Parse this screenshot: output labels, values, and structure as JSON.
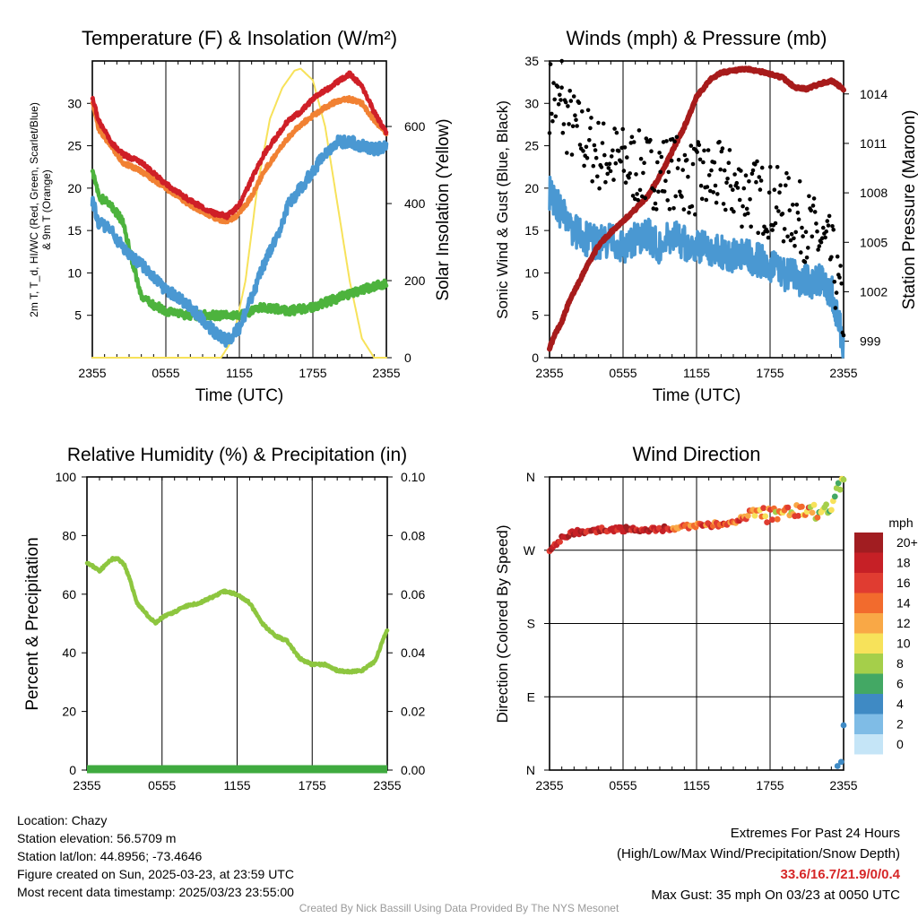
{
  "colors": {
    "temp": "#cf1f27",
    "wetbulb": "#4a98d2",
    "dew": "#4db33d",
    "temp9m": "#f18133",
    "solar": "#f7e25a",
    "sonic": "#4a98d2",
    "gust": "#000000",
    "pressure": "#a71b1b",
    "rh": "#8dc63f",
    "precip": "#3faa3f",
    "gridline": "#000000"
  },
  "x_ticks": [
    "2355",
    "0555",
    "1155",
    "1755",
    "2355"
  ],
  "chart_data": [
    {
      "type": "line",
      "title": "Temperature (F) & Insolation (W/m²)",
      "xlabel": "Time (UTC)",
      "ylabel": "2m T, Td, HI/WC (Red, Green, Scarlet/Blue) & 9m T (Orange)",
      "ylabel_lines": [
        "2m T, T_d, HI/WC (Red, Green, Scarlet/Blue)",
        "& 9m T (Orange)"
      ],
      "y2label": "Solar Insolation (Yellow)",
      "x_ticks": [
        "2355",
        "0555",
        "1155",
        "1755",
        "2355"
      ],
      "ylim": [
        0,
        35
      ],
      "y_ticks": [
        5,
        10,
        15,
        20,
        25,
        30
      ],
      "y2lim": [
        0,
        770
      ],
      "y2_ticks": [
        0,
        200,
        400,
        600
      ],
      "grid": true,
      "series": [
        {
          "key": "temp",
          "axis": "left",
          "points": [
            [
              0,
              30.8
            ],
            [
              0.5,
              28
            ],
            [
              1.5,
              25.5
            ],
            [
              2.5,
              24
            ],
            [
              4,
              23
            ],
            [
              6,
              20.5
            ],
            [
              8,
              18.5
            ],
            [
              10,
              17
            ],
            [
              11,
              16.7
            ],
            [
              12,
              18
            ],
            [
              13,
              21
            ],
            [
              14,
              24
            ],
            [
              15,
              26
            ],
            [
              16,
              28
            ],
            [
              17,
              29
            ],
            [
              18,
              30.5
            ],
            [
              19,
              31.5
            ],
            [
              20,
              32.5
            ],
            [
              21,
              33.5
            ],
            [
              22,
              32
            ],
            [
              23,
              29
            ],
            [
              24,
              26.5
            ]
          ]
        },
        {
          "key": "temp9m",
          "axis": "left",
          "points": [
            [
              0,
              30.3
            ],
            [
              0.5,
              27
            ],
            [
              1.5,
              25
            ],
            [
              2.5,
              23
            ],
            [
              4,
              22
            ],
            [
              6,
              20
            ],
            [
              8,
              18
            ],
            [
              10,
              16.5
            ],
            [
              11,
              16
            ],
            [
              12,
              17
            ],
            [
              13,
              19
            ],
            [
              14,
              22
            ],
            [
              15,
              24
            ],
            [
              16,
              26
            ],
            [
              17,
              27.5
            ],
            [
              18,
              28.5
            ],
            [
              19,
              29.5
            ],
            [
              20,
              30.3
            ],
            [
              21,
              30.5
            ],
            [
              22,
              30
            ],
            [
              23,
              28
            ],
            [
              24,
              26.5
            ]
          ]
        },
        {
          "key": "wetbulb",
          "axis": "left",
          "points": [
            [
              0,
              18.7
            ],
            [
              0.5,
              16
            ],
            [
              1.5,
              15
            ],
            [
              3,
              12
            ],
            [
              4,
              11
            ],
            [
              6,
              8
            ],
            [
              8,
              6
            ],
            [
              10,
              3
            ],
            [
              11,
              2
            ],
            [
              12,
              3.5
            ],
            [
              13,
              7
            ],
            [
              14,
              11
            ],
            [
              15,
              14
            ],
            [
              16,
              18
            ],
            [
              17,
              20
            ],
            [
              18,
              22
            ],
            [
              19,
              24
            ],
            [
              20,
              25.5
            ],
            [
              21,
              25.5
            ],
            [
              22,
              25
            ],
            [
              23,
              24.5
            ],
            [
              24,
              25
            ]
          ]
        },
        {
          "key": "dew",
          "axis": "left",
          "points": [
            [
              0,
              22.5
            ],
            [
              0.5,
              19
            ],
            [
              1.5,
              18
            ],
            [
              2.5,
              16
            ],
            [
              3.5,
              10
            ],
            [
              4,
              7
            ],
            [
              6,
              5.5
            ],
            [
              8,
              5
            ],
            [
              10,
              5
            ],
            [
              12,
              5
            ],
            [
              14,
              6
            ],
            [
              16,
              5.5
            ],
            [
              18,
              6
            ],
            [
              20,
              7
            ],
            [
              22,
              8
            ],
            [
              24,
              8.8
            ]
          ]
        },
        {
          "key": "solar",
          "axis": "right",
          "points": [
            [
              0,
              0
            ],
            [
              10.5,
              0
            ],
            [
              11.5,
              50
            ],
            [
              12.5,
              200
            ],
            [
              13.5,
              450
            ],
            [
              14.5,
              620
            ],
            [
              15.5,
              700
            ],
            [
              16.5,
              745
            ],
            [
              17,
              750
            ],
            [
              18,
              720
            ],
            [
              19,
              600
            ],
            [
              20,
              400
            ],
            [
              21,
              200
            ],
            [
              22,
              50
            ],
            [
              23,
              0
            ],
            [
              24,
              0
            ]
          ]
        }
      ]
    },
    {
      "type": "scatter",
      "title": "Winds (mph) & Pressure (mb)",
      "xlabel": "Time (UTC)",
      "ylabel": "Sonic Wind & Gust (Blue, Black)",
      "y2label": "Station Pressure (Maroon)",
      "x_ticks": [
        "2355",
        "0555",
        "1155",
        "1755",
        "2355"
      ],
      "ylim": [
        0,
        35
      ],
      "y_ticks": [
        0,
        5,
        10,
        15,
        20,
        25,
        30,
        35
      ],
      "y2lim": [
        998,
        1016
      ],
      "y2_ticks": [
        999,
        1002,
        1005,
        1008,
        1011,
        1014
      ],
      "grid": true,
      "series": [
        {
          "key": "sonic",
          "axis": "left",
          "points": [
            [
              0,
              19.5
            ],
            [
              1,
              17
            ],
            [
              2,
              15
            ],
            [
              3,
              14
            ],
            [
              4,
              13.5
            ],
            [
              5,
              14
            ],
            [
              6,
              13
            ],
            [
              7,
              14
            ],
            [
              8,
              14.5
            ],
            [
              9,
              13
            ],
            [
              10,
              14.5
            ],
            [
              11,
              13.5
            ],
            [
              12,
              13
            ],
            [
              13,
              13
            ],
            [
              14,
              12.5
            ],
            [
              15,
              12
            ],
            [
              16,
              12
            ],
            [
              17,
              11.5
            ],
            [
              18,
              11
            ],
            [
              19,
              10
            ],
            [
              20,
              9.5
            ],
            [
              21,
              9
            ],
            [
              22,
              9
            ],
            [
              23,
              8
            ],
            [
              23.5,
              5
            ],
            [
              24,
              1.5
            ]
          ]
        },
        {
          "key": "gust",
          "axis": "left",
          "trend": [
            [
              0,
              31
            ],
            [
              2,
              27
            ],
            [
              4,
              24
            ],
            [
              6,
              23
            ],
            [
              8,
              22
            ],
            [
              10,
              22
            ],
            [
              12,
              21
            ],
            [
              14,
              21
            ],
            [
              16,
              19.5
            ],
            [
              18,
              18.5
            ],
            [
              20,
              17
            ],
            [
              22,
              14
            ],
            [
              23,
              12
            ],
            [
              24,
              5
            ]
          ],
          "max": {
            "x": 1,
            "y": 35
          }
        },
        {
          "key": "pressure",
          "axis": "right",
          "points": [
            [
              0,
              998.6
            ],
            [
              0.5,
              999.5
            ],
            [
              1,
              1000.2
            ],
            [
              1.5,
              1001.2
            ],
            [
              2,
              1002
            ],
            [
              3,
              1003.5
            ],
            [
              4,
              1004.8
            ],
            [
              5,
              1005.6
            ],
            [
              6,
              1006.3
            ],
            [
              7,
              1007
            ],
            [
              8,
              1007.8
            ],
            [
              9,
              1009
            ],
            [
              10,
              1010.5
            ],
            [
              11,
              1012
            ],
            [
              12,
              1013.8
            ],
            [
              13,
              1014.8
            ],
            [
              14,
              1015.3
            ],
            [
              15,
              1015.4
            ],
            [
              16,
              1015.5
            ],
            [
              17,
              1015.4
            ],
            [
              18,
              1015.2
            ],
            [
              19,
              1015
            ],
            [
              20,
              1014.4
            ],
            [
              21,
              1014.3
            ],
            [
              22,
              1014.6
            ],
            [
              23,
              1014.8
            ],
            [
              24,
              1014.3
            ]
          ]
        }
      ]
    },
    {
      "type": "line",
      "title": "Relative Humidity (%) & Precipitation (in)",
      "xlabel": "",
      "ylabel": "Percent & Precipitation",
      "x_ticks": [
        "2355",
        "0555",
        "1155",
        "1755",
        "2355"
      ],
      "ylim": [
        0,
        100
      ],
      "y_ticks": [
        0,
        20,
        40,
        60,
        80,
        100
      ],
      "y2lim": [
        0,
        0.1
      ],
      "y2_ticks": [
        "0.00",
        "0.02",
        "0.04",
        "0.06",
        "0.08",
        "0.10"
      ],
      "grid": true,
      "series": [
        {
          "key": "rh",
          "axis": "left",
          "points": [
            [
              0,
              71
            ],
            [
              0.3,
              70
            ],
            [
              1,
              68
            ],
            [
              1.5,
              70
            ],
            [
              2,
              72
            ],
            [
              2.5,
              72
            ],
            [
              3,
              70
            ],
            [
              3.5,
              64
            ],
            [
              4,
              57
            ],
            [
              5,
              52
            ],
            [
              5.5,
              50
            ],
            [
              6,
              52
            ],
            [
              7,
              54
            ],
            [
              8,
              56
            ],
            [
              9,
              57
            ],
            [
              10,
              59
            ],
            [
              11,
              61
            ],
            [
              12,
              60
            ],
            [
              13,
              57
            ],
            [
              14,
              50
            ],
            [
              15,
              46
            ],
            [
              16,
              44
            ],
            [
              17,
              38
            ],
            [
              18,
              36
            ],
            [
              19,
              36
            ],
            [
              20,
              34
            ],
            [
              21,
              33.5
            ],
            [
              22,
              34
            ],
            [
              23,
              37
            ],
            [
              24,
              48
            ]
          ]
        },
        {
          "key": "precip",
          "axis": "right",
          "points": [
            [
              0,
              0
            ],
            [
              24,
              0
            ]
          ]
        }
      ]
    },
    {
      "type": "scatter",
      "title": "Wind Direction",
      "ylabel": "Direction (Colored By Speed)",
      "x_ticks": [
        "2355",
        "0555",
        "1155",
        "1755",
        "2355"
      ],
      "ylim": [
        0,
        360
      ],
      "y_ticks": [
        "N",
        "E",
        "S",
        "W",
        "N"
      ],
      "grid": true,
      "direction_trend": [
        [
          0,
          272
        ],
        [
          1,
          285
        ],
        [
          2,
          292
        ],
        [
          4,
          295
        ],
        [
          6,
          296
        ],
        [
          8,
          295
        ],
        [
          10,
          297
        ],
        [
          12,
          300
        ],
        [
          14,
          302
        ],
        [
          15,
          305
        ],
        [
          16,
          310
        ],
        [
          17,
          315
        ],
        [
          18,
          312
        ],
        [
          19,
          320
        ],
        [
          20,
          318
        ],
        [
          21,
          315
        ],
        [
          22,
          318
        ],
        [
          23,
          325
        ],
        [
          23.5,
          345
        ],
        [
          24,
          355
        ]
      ],
      "late_points": [
        [
          23.5,
          5
        ],
        [
          23.8,
          10
        ],
        [
          24,
          55
        ]
      ],
      "legend": {
        "title": "mph",
        "labels": [
          "20+",
          "18",
          "16",
          "14",
          "12",
          "10",
          "8",
          "6",
          "4",
          "2",
          "0"
        ],
        "colors": [
          "#a11d21",
          "#c62026",
          "#e03c31",
          "#f26b2d",
          "#f9a846",
          "#f7e25a",
          "#a5cf4a",
          "#43a864",
          "#3f8ac4",
          "#7fbce6",
          "#c5e5f7"
        ]
      }
    }
  ],
  "footer": {
    "location": "Location: Chazy",
    "elevation": "Station elevation: 56.5709 m",
    "latlon": "Station lat/lon: 44.8956; -73.4646",
    "created": "Figure created on Sun, 2025-03-23, at 23:59 UTC",
    "recent": "Most recent data timestamp: 2025/03/23 23:55:00",
    "extremes_title": "Extremes For Past 24 Hours",
    "extremes_sub": "(High/Low/Max Wind/Precipitation/Snow Depth)",
    "extremes_values": "33.6/16.7/21.9/0/0.4",
    "max_gust": "Max Gust: 35 mph On 03/23 at 0050 UTC",
    "credit": "Created By Nick Bassill Using Data Provided By The NYS Mesonet"
  }
}
